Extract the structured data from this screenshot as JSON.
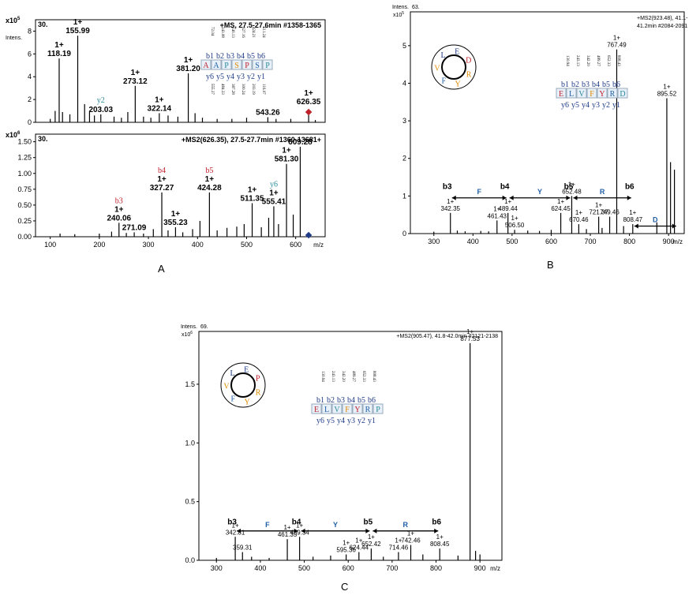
{
  "panel_letters": [
    "A",
    "B",
    "C"
  ],
  "colors": {
    "red": "#c0202a",
    "blue": "#1f5fa8",
    "teal": "#2a8a9a",
    "orange": "#e08a00",
    "navy": "#1f3c88"
  },
  "chart_data": [
    {
      "id": "A1",
      "type": "bar",
      "header_left": "30.",
      "header_right": "+MS, 27.5-27.6min #1358-1365",
      "ylabel": "Intens.",
      "y_exponent": "x10",
      "xlim": [
        70,
        660
      ],
      "ylim": [
        0,
        9
      ],
      "y_ticks": [
        "0",
        "2",
        "4",
        "6",
        "8"
      ],
      "y_tick_values": [
        0,
        2,
        4,
        6,
        8
      ],
      "x_ticks": [],
      "labeled_peaks": [
        {
          "x": 118.19,
          "y": 5.6,
          "charge": "1+",
          "mz": "118.19"
        },
        {
          "x": 155.99,
          "y": 7.6,
          "charge": "1+",
          "mz": "155.99"
        },
        {
          "x": 203.03,
          "y": 0.7,
          "charge": "",
          "mz": "203.03",
          "ion": "y2",
          "ion_color": "teal"
        },
        {
          "x": 273.12,
          "y": 3.2,
          "charge": "1+",
          "mz": "273.12"
        },
        {
          "x": 322.14,
          "y": 0.8,
          "charge": "1+",
          "mz": "322.14"
        },
        {
          "x": 381.2,
          "y": 4.3,
          "charge": "1+",
          "mz": "381.20"
        },
        {
          "x": 543.26,
          "y": 0.45,
          "charge": "",
          "mz": "543.26"
        },
        {
          "x": 626.35,
          "y": 0.9,
          "charge": "1+",
          "mz": "626.35",
          "color": "red"
        }
      ],
      "minor_peaks": [
        [
          100,
          0.3
        ],
        [
          110,
          1.0
        ],
        [
          125,
          0.9
        ],
        [
          140,
          0.7
        ],
        [
          170,
          1.6
        ],
        [
          180,
          0.9
        ],
        [
          190,
          0.6
        ],
        [
          230,
          0.5
        ],
        [
          245,
          0.4
        ],
        [
          258,
          0.9
        ],
        [
          290,
          0.5
        ],
        [
          305,
          0.4
        ],
        [
          340,
          0.6
        ],
        [
          360,
          0.5
        ],
        [
          395,
          0.8
        ],
        [
          410,
          0.4
        ],
        [
          440,
          0.3
        ],
        [
          470,
          0.3
        ],
        [
          500,
          0.4
        ],
        [
          560,
          0.3
        ],
        [
          590,
          0.3
        ],
        [
          640,
          0.2
        ]
      ]
    },
    {
      "id": "A2",
      "type": "bar",
      "header_left": "30.",
      "header_right": "+MS2(626.35), 27.5-27.7min #1360-13681+",
      "ylabel": "",
      "y_exponent": "x10",
      "xlim": [
        70,
        660
      ],
      "ylim": [
        0,
        1.62
      ],
      "y_ticks": [
        "0.00",
        "0.25",
        "0.50",
        "0.75",
        "1.00",
        "1.25",
        "1.50"
      ],
      "y_tick_values": [
        0,
        0.25,
        0.5,
        0.75,
        1.0,
        1.25,
        1.5
      ],
      "x_ticks": [
        "100",
        "200",
        "300",
        "400",
        "500",
        "600"
      ],
      "x_tick_values": [
        100,
        200,
        300,
        400,
        500,
        600
      ],
      "xlabel": "m/z",
      "labeled_peaks": [
        {
          "x": 240.06,
          "y": 0.22,
          "charge": "1+",
          "mz": "240.06",
          "ion": "b3",
          "ion_color": "red"
        },
        {
          "x": 271.09,
          "y": 0.07,
          "charge": "",
          "mz": "271.09"
        },
        {
          "x": 327.27,
          "y": 0.7,
          "charge": "1+",
          "mz": "327.27",
          "ion": "b4",
          "ion_color": "red"
        },
        {
          "x": 355.23,
          "y": 0.15,
          "charge": "1+",
          "mz": "355.23"
        },
        {
          "x": 424.28,
          "y": 0.7,
          "charge": "1+",
          "mz": "424.28",
          "ion": "b5",
          "ion_color": "red"
        },
        {
          "x": 511.35,
          "y": 0.53,
          "charge": "1+",
          "mz": "511.35"
        },
        {
          "x": 555.41,
          "y": 0.48,
          "charge": "1+",
          "mz": "555.41",
          "ion": "y6",
          "ion_color": "teal"
        },
        {
          "x": 581.3,
          "y": 1.15,
          "charge": "1+",
          "mz": "581.30"
        },
        {
          "x": 609.28,
          "y": 1.42,
          "charge": "",
          "mz": "609.28"
        }
      ],
      "minor_peaks": [
        [
          120,
          0.05
        ],
        [
          150,
          0.04
        ],
        [
          200,
          0.05
        ],
        [
          225,
          0.08
        ],
        [
          255,
          0.06
        ],
        [
          290,
          0.05
        ],
        [
          310,
          0.12
        ],
        [
          340,
          0.1
        ],
        [
          370,
          0.07
        ],
        [
          390,
          0.12
        ],
        [
          405,
          0.25
        ],
        [
          440,
          0.1
        ],
        [
          460,
          0.14
        ],
        [
          480,
          0.16
        ],
        [
          495,
          0.2
        ],
        [
          530,
          0.15
        ],
        [
          545,
          0.3
        ],
        [
          565,
          0.2
        ],
        [
          595,
          0.35
        ]
      ],
      "marker": {
        "x": 626.35,
        "color": "navy"
      }
    },
    {
      "id": "B",
      "type": "bar",
      "header_left": "Intens.",
      "header_code": "63.",
      "header_right_lines": [
        "+MS2(923.48), 41.1-",
        "41.2min #2084-2091"
      ],
      "y_exponent": "x10",
      "xlim": [
        240,
        940
      ],
      "ylim": [
        0,
        5.9
      ],
      "y_ticks": [
        "0",
        "1",
        "2",
        "3",
        "4",
        "5"
      ],
      "y_tick_values": [
        0,
        1,
        2,
        3,
        4,
        5
      ],
      "x_ticks": [
        "300",
        "400",
        "500",
        "600",
        "700",
        "800",
        "900"
      ],
      "x_tick_values": [
        300,
        400,
        500,
        600,
        700,
        800,
        900
      ],
      "xlabel": "m/z",
      "labeled_peaks": [
        {
          "x": 342.35,
          "y": 0.55,
          "charge": "1+",
          "mz": "342.35"
        },
        {
          "x": 461.43,
          "y": 0.35,
          "charge": "1+",
          "mz": "461.43"
        },
        {
          "x": 489.44,
          "y": 0.55,
          "charge": "1+",
          "mz": "489.44"
        },
        {
          "x": 506.5,
          "y": 0.1,
          "charge": "1+",
          "mz": "506.50"
        },
        {
          "x": 624.45,
          "y": 0.55,
          "charge": "1+",
          "mz": "624.45"
        },
        {
          "x": 652.48,
          "y": 1.0,
          "charge": "1+",
          "mz": "652.48"
        },
        {
          "x": 670.46,
          "y": 0.25,
          "charge": "1+",
          "mz": "670.46"
        },
        {
          "x": 721.37,
          "y": 0.45,
          "charge": "1+",
          "mz": "721.37"
        },
        {
          "x": 749.46,
          "y": 0.45,
          "charge": "",
          "mz": "749.46"
        },
        {
          "x": 767.49,
          "y": 4.9,
          "charge": "1+",
          "mz": "767.49"
        },
        {
          "x": 808.47,
          "y": 0.25,
          "charge": "1+",
          "mz": "808.47"
        },
        {
          "x": 895.52,
          "y": 3.6,
          "charge": "1+",
          "mz": "895.52"
        }
      ],
      "minor_peaks": [
        [
          300,
          0.05
        ],
        [
          360,
          0.08
        ],
        [
          380,
          0.06
        ],
        [
          420,
          0.07
        ],
        [
          440,
          0.06
        ],
        [
          540,
          0.08
        ],
        [
          570,
          0.07
        ],
        [
          600,
          0.1
        ],
        [
          690,
          0.12
        ],
        [
          730,
          0.15
        ],
        [
          785,
          0.2
        ],
        [
          870,
          0.3
        ],
        [
          905,
          1.9
        ],
        [
          915,
          1.7
        ]
      ],
      "ions": [
        {
          "x": 342.35,
          "label": "b3"
        },
        {
          "x": 489.44,
          "label": "b4"
        },
        {
          "x": 652.48,
          "label": "b5"
        },
        {
          "x": 808.47,
          "label": "b6"
        }
      ],
      "residues": [
        {
          "from": 342.35,
          "to": 489.44,
          "label": "F"
        },
        {
          "from": 489.44,
          "to": 652.48,
          "label": "Y"
        },
        {
          "from": 652.48,
          "to": 808.47,
          "label": "R"
        },
        {
          "from": 808.47,
          "to": 923.48,
          "label": "D"
        }
      ]
    },
    {
      "id": "C",
      "type": "bar",
      "header_left": "Intens.",
      "header_code": "69.",
      "header_right": "+MS2(905.47), 41.8-42.0min #2121-2138",
      "y_exponent": "x10",
      "xlim": [
        260,
        950
      ],
      "ylim": [
        0,
        1.95
      ],
      "y_ticks": [
        "0.0",
        "0.5",
        "1.0",
        "1.5"
      ],
      "y_tick_values": [
        0,
        0.5,
        1.0,
        1.5
      ],
      "x_ticks": [
        "300",
        "400",
        "500",
        "600",
        "700",
        "800",
        "900"
      ],
      "x_tick_values": [
        300,
        400,
        500,
        600,
        700,
        800,
        900
      ],
      "xlabel": "m/z",
      "labeled_peaks": [
        {
          "x": 342.81,
          "y": 0.2,
          "charge": "1+",
          "mz": "342.81"
        },
        {
          "x": 359.31,
          "y": 0.07,
          "charge": "",
          "mz": "359.31"
        },
        {
          "x": 461.35,
          "y": 0.18,
          "charge": "1+",
          "mz": "461.35"
        },
        {
          "x": 489.34,
          "y": 0.2,
          "charge": "1+",
          "mz": "489.34"
        },
        {
          "x": 595.36,
          "y": 0.05,
          "charge": "1+",
          "mz": "595.36"
        },
        {
          "x": 624.44,
          "y": 0.07,
          "charge": "1+",
          "mz": "624.44"
        },
        {
          "x": 652.42,
          "y": 0.1,
          "charge": "1+",
          "mz": "652.42"
        },
        {
          "x": 714.46,
          "y": 0.07,
          "charge": "1+",
          "mz": "714.46"
        },
        {
          "x": 742.46,
          "y": 0.13,
          "charge": "1+",
          "mz": "742.46"
        },
        {
          "x": 808.45,
          "y": 0.1,
          "charge": "1+",
          "mz": "808.45"
        },
        {
          "x": 877.53,
          "y": 1.85,
          "charge": "1+",
          "mz": "877.53"
        }
      ],
      "minor_peaks": [
        [
          300,
          0.02
        ],
        [
          380,
          0.03
        ],
        [
          420,
          0.02
        ],
        [
          520,
          0.03
        ],
        [
          560,
          0.04
        ],
        [
          680,
          0.03
        ],
        [
          770,
          0.05
        ],
        [
          850,
          0.04
        ],
        [
          890,
          0.08
        ],
        [
          900,
          0.05
        ]
      ],
      "ions": [
        {
          "x": 342.81,
          "label": "b3"
        },
        {
          "x": 489.34,
          "label": "b4"
        },
        {
          "x": 652.42,
          "label": "b5"
        },
        {
          "x": 808.45,
          "label": "b6"
        }
      ],
      "residues": [
        {
          "from": 342.81,
          "to": 489.34,
          "label": "F"
        },
        {
          "from": 489.34,
          "to": 652.42,
          "label": "Y"
        },
        {
          "from": 652.42,
          "to": 808.45,
          "label": "R"
        }
      ]
    }
  ],
  "insets": {
    "A": {
      "b_masses": [
        "72.04",
        "143.08",
        "240.13",
        "327.16",
        "424.21",
        "511.24"
      ],
      "b_labels": [
        "b1",
        "b2",
        "b3",
        "b4",
        "b5",
        "b6"
      ],
      "sequence": [
        "A",
        "A",
        "P",
        "S",
        "P",
        "S",
        "P"
      ],
      "y_labels": [
        "y6",
        "y5",
        "y4",
        "y3",
        "y2",
        "y1"
      ],
      "y_masses": [
        "555.37",
        "484.33",
        "387.28",
        "300.24",
        "203.19",
        "116.07"
      ]
    },
    "B": {
      "cyclic": [
        "E",
        "D",
        "R",
        "Y",
        "F",
        "V",
        "L"
      ],
      "b_masses": [
        "130.94",
        "243.13",
        "342.20",
        "489.27",
        "652.33",
        "808.43"
      ],
      "b_labels": [
        "b1",
        "b2",
        "b3",
        "b4",
        "b5",
        "b6"
      ],
      "sequence": [
        "E",
        "L",
        "V",
        "F",
        "Y",
        "R",
        "D"
      ],
      "y_labels": [
        "y6",
        "y5",
        "y4",
        "y3",
        "y2",
        "y1"
      ]
    },
    "C": {
      "cyclic": [
        "E",
        "P",
        "R",
        "Y",
        "F",
        "V",
        "L"
      ],
      "b_masses": [
        "130.94",
        "243.13",
        "342.20",
        "489.27",
        "652.33",
        "808.43"
      ],
      "b_labels": [
        "b1",
        "b2",
        "b3",
        "b4",
        "b5",
        "b6"
      ],
      "sequence": [
        "E",
        "L",
        "V",
        "F",
        "Y",
        "R",
        "P"
      ],
      "y_labels": [
        "y6",
        "y5",
        "y4",
        "y3",
        "y2",
        "y1"
      ]
    }
  }
}
